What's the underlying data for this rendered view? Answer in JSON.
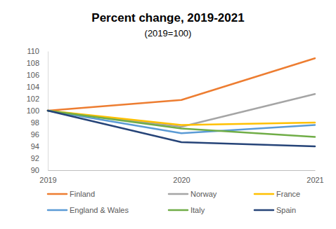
{
  "chart_data": {
    "type": "line",
    "title": "Percent change, 2019-2021",
    "subtitle": "(2019=100)",
    "categories": [
      "2019",
      "2020",
      "2021"
    ],
    "series": [
      {
        "name": "Finland",
        "color": "#ed7d31",
        "values": [
          100,
          101.8,
          108.8
        ]
      },
      {
        "name": "Norway",
        "color": "#a5a5a5",
        "values": [
          100,
          97.3,
          102.8
        ]
      },
      {
        "name": "France",
        "color": "#ffc000",
        "values": [
          100,
          97.6,
          98.0
        ]
      },
      {
        "name": "England & Wales",
        "color": "#5b9bd5",
        "values": [
          100,
          96.2,
          97.6
        ]
      },
      {
        "name": "Italy",
        "color": "#70ad47",
        "values": [
          100,
          97.0,
          95.6
        ]
      },
      {
        "name": "Spain",
        "color": "#264478",
        "values": [
          100,
          94.7,
          94.0
        ]
      }
    ],
    "ylim": [
      90,
      110
    ],
    "yticks": [
      90,
      92,
      94,
      96,
      98,
      100,
      102,
      104,
      106,
      108,
      110
    ],
    "grid": false,
    "legend": "bottom"
  }
}
